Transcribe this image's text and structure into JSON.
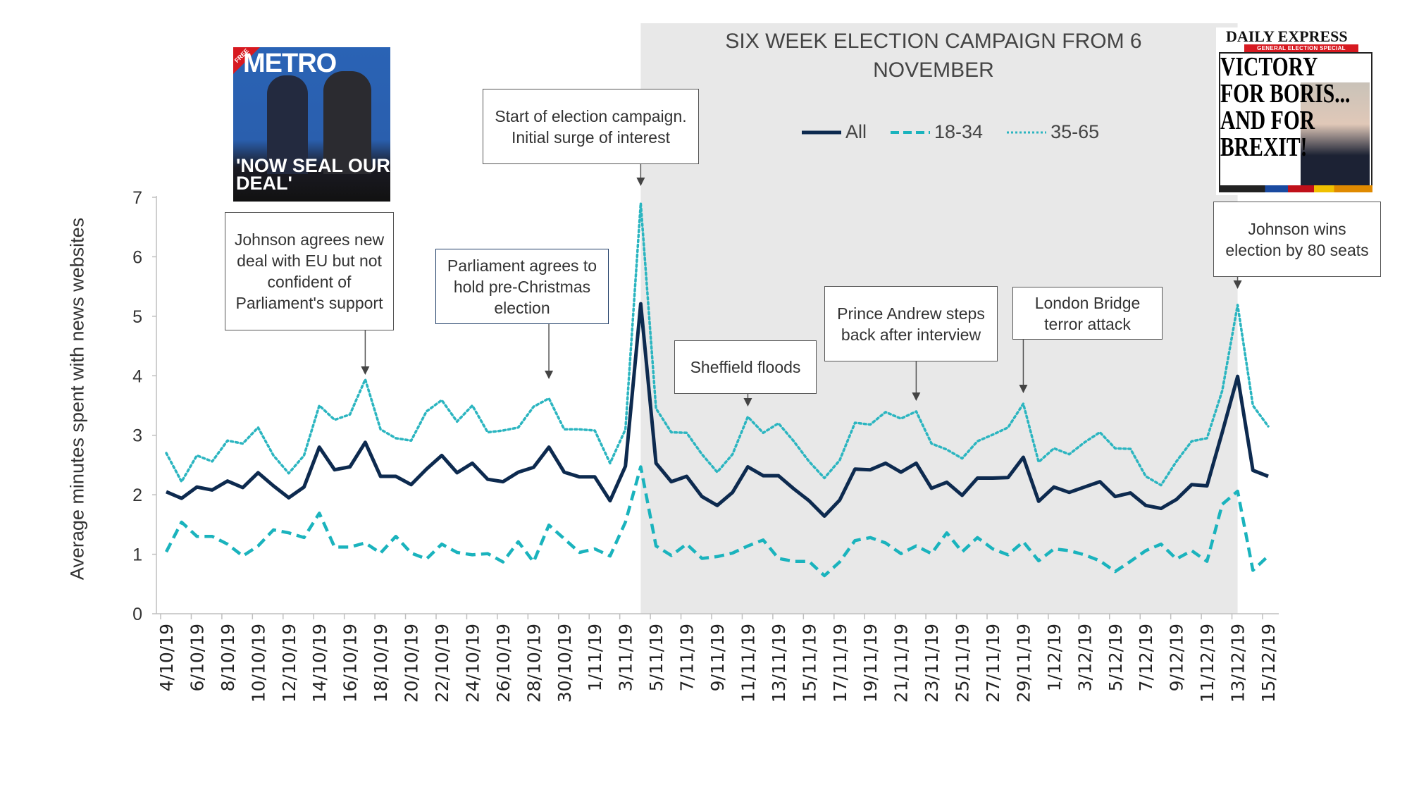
{
  "chart_data": {
    "type": "line",
    "title": "SIX WEEK ELECTION CAMPAIGN FROM 6 NOVEMBER",
    "ylabel": "Average minutes spent with news websites",
    "xlabel": "",
    "ylim": [
      0,
      7
    ],
    "yticks": [
      0,
      1,
      2,
      3,
      4,
      5,
      6,
      7
    ],
    "grid": false,
    "legend_placement": "top-center",
    "shaded_period": [
      "4/11/19",
      "13/12/19"
    ],
    "x": [
      "4/10/19",
      "5/10/19",
      "6/10/19",
      "7/10/19",
      "8/10/19",
      "9/10/19",
      "10/10/19",
      "11/10/19",
      "12/10/19",
      "13/10/19",
      "14/10/19",
      "15/10/19",
      "16/10/19",
      "17/10/19",
      "18/10/19",
      "19/10/19",
      "20/10/19",
      "21/10/19",
      "22/10/19",
      "23/10/19",
      "24/10/19",
      "25/10/19",
      "26/10/19",
      "27/10/19",
      "28/10/19",
      "29/10/19",
      "30/10/19",
      "31/10/19",
      "1/11/19",
      "2/11/19",
      "3/11/19",
      "4/11/19",
      "5/11/19",
      "6/11/19",
      "7/11/19",
      "8/11/19",
      "9/11/19",
      "10/11/19",
      "11/11/19",
      "12/11/19",
      "13/11/19",
      "14/11/19",
      "15/11/19",
      "16/11/19",
      "17/11/19",
      "18/11/19",
      "19/11/19",
      "20/11/19",
      "21/11/19",
      "22/11/19",
      "23/11/19",
      "24/11/19",
      "25/11/19",
      "26/11/19",
      "27/11/19",
      "28/11/19",
      "29/11/19",
      "30/11/19",
      "1/12/19",
      "2/12/19",
      "3/12/19",
      "4/12/19",
      "5/12/19",
      "6/12/19",
      "7/12/19",
      "8/12/19",
      "9/12/19",
      "10/12/19",
      "11/12/19",
      "12/12/19",
      "13/12/19",
      "14/12/19",
      "15/12/19"
    ],
    "series": [
      {
        "name": "All",
        "style": "solid",
        "color": "#0d2a4f",
        "values": [
          2.05,
          1.94,
          2.13,
          2.08,
          2.23,
          2.12,
          2.37,
          2.15,
          1.95,
          2.13,
          2.8,
          2.42,
          2.47,
          2.88,
          2.31,
          2.31,
          2.17,
          2.43,
          2.66,
          2.37,
          2.53,
          2.26,
          2.22,
          2.38,
          2.46,
          2.8,
          2.38,
          2.3,
          2.3,
          1.9,
          2.48,
          5.21,
          2.53,
          2.22,
          2.31,
          1.97,
          1.82,
          2.04,
          2.47,
          2.32,
          2.32,
          2.1,
          1.9,
          1.64,
          1.91,
          2.43,
          2.42,
          2.53,
          2.38,
          2.53,
          2.11,
          2.21,
          1.99,
          2.28,
          2.28,
          2.29,
          2.63,
          1.89,
          2.13,
          2.04,
          2.13,
          2.22,
          1.97,
          2.03,
          1.82,
          1.77,
          1.92,
          2.17,
          2.15,
          3.05,
          3.99,
          2.41,
          2.31
        ]
      },
      {
        "name": "18-34",
        "style": "dashed",
        "color": "#1ab3bd",
        "values": [
          1.04,
          1.54,
          1.3,
          1.3,
          1.17,
          0.97,
          1.14,
          1.41,
          1.36,
          1.28,
          1.69,
          1.12,
          1.12,
          1.19,
          1.02,
          1.3,
          1.02,
          0.92,
          1.17,
          1.03,
          0.99,
          1.01,
          0.87,
          1.21,
          0.87,
          1.49,
          1.26,
          1.03,
          1.09,
          0.97,
          1.54,
          2.47,
          1.14,
          0.98,
          1.17,
          0.93,
          0.96,
          1.02,
          1.14,
          1.24,
          0.93,
          0.88,
          0.88,
          0.64,
          0.87,
          1.23,
          1.28,
          1.19,
          1.01,
          1.14,
          1.01,
          1.36,
          1.04,
          1.28,
          1.09,
          0.99,
          1.21,
          0.89,
          1.09,
          1.06,
          0.99,
          0.89,
          0.71,
          0.88,
          1.06,
          1.17,
          0.92,
          1.06,
          0.88,
          1.84,
          2.06,
          0.73,
          0.97
        ]
      },
      {
        "name": "35-65",
        "style": "dotted",
        "color": "#2bb5c0",
        "values": [
          2.7,
          2.22,
          2.66,
          2.56,
          2.91,
          2.86,
          3.13,
          2.66,
          2.36,
          2.66,
          3.5,
          3.26,
          3.35,
          3.94,
          3.1,
          2.95,
          2.91,
          3.4,
          3.59,
          3.23,
          3.5,
          3.05,
          3.08,
          3.13,
          3.48,
          3.62,
          3.1,
          3.1,
          3.08,
          2.53,
          3.1,
          6.9,
          3.45,
          3.05,
          3.04,
          2.68,
          2.38,
          2.68,
          3.31,
          3.04,
          3.2,
          2.9,
          2.56,
          2.28,
          2.58,
          3.21,
          3.18,
          3.39,
          3.28,
          3.4,
          2.86,
          2.76,
          2.61,
          2.9,
          3.01,
          3.13,
          3.53,
          2.55,
          2.78,
          2.68,
          2.88,
          3.05,
          2.78,
          2.77,
          2.31,
          2.16,
          2.56,
          2.9,
          2.95,
          3.75,
          5.19,
          3.5,
          3.15
        ]
      }
    ],
    "annotations": [
      {
        "id": "deal",
        "text": "Johnson agrees new deal with EU but not confident of Parliament's support",
        "date": "17/10/19"
      },
      {
        "id": "parliament",
        "text": "Parliament agrees to hold pre-Christmas election",
        "date": "29/10/19"
      },
      {
        "id": "start",
        "text": "Start of election campaign. Initial surge of interest",
        "date": "4/11/19"
      },
      {
        "id": "floods",
        "text": "Sheffield floods",
        "date": "11/11/19"
      },
      {
        "id": "andrew",
        "text": "Prince Andrew steps back after interview",
        "date": "22/11/19"
      },
      {
        "id": "bridge",
        "text": "London Bridge terror attack",
        "date": "29/11/19"
      },
      {
        "id": "wins",
        "text": "Johnson wins election by 80 seats",
        "date": "13/12/19"
      }
    ]
  },
  "images": {
    "metro_cover": {
      "masthead": "METRO",
      "badge": "FREE",
      "headline": "'NOW SEAL OUR DEAL'"
    },
    "express_cover": {
      "masthead": "DAILY EXPRESS",
      "band": "GENERAL ELECTION SPECIAL",
      "headline": "VICTORY FOR BORIS... AND FOR BREXIT!"
    }
  },
  "colors": {
    "shading": "#e8e8e8",
    "axis": "#bfbfbf"
  }
}
